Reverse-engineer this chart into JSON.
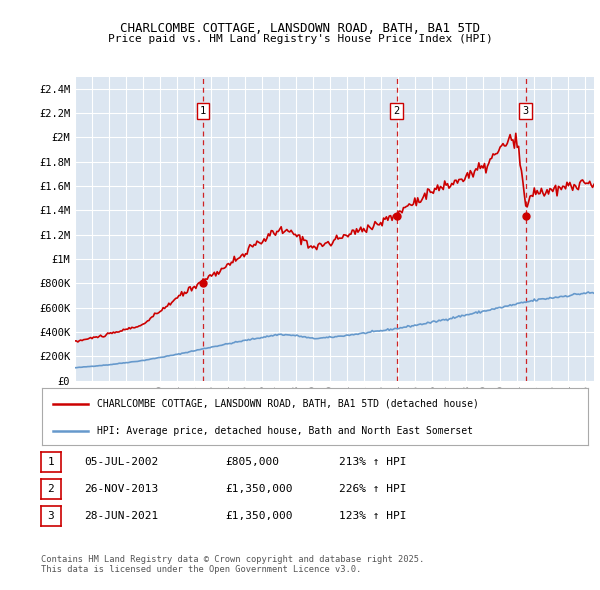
{
  "title": "CHARLCOMBE COTTAGE, LANSDOWN ROAD, BATH, BA1 5TD",
  "subtitle": "Price paid vs. HM Land Registry's House Price Index (HPI)",
  "plot_bg_color": "#dce6f1",
  "ylim": [
    0,
    2500000
  ],
  "yticks": [
    0,
    200000,
    400000,
    600000,
    800000,
    1000000,
    1200000,
    1400000,
    1600000,
    1800000,
    2000000,
    2200000,
    2400000
  ],
  "ytick_labels": [
    "£0",
    "£200K",
    "£400K",
    "£600K",
    "£800K",
    "£1M",
    "£1.2M",
    "£1.4M",
    "£1.6M",
    "£1.8M",
    "£2M",
    "£2.2M",
    "£2.4M"
  ],
  "xlim_start": 1995,
  "xlim_end": 2025.5,
  "sale_dates_decimal": [
    2002.508,
    2013.899,
    2021.486
  ],
  "sale_prices": [
    805000,
    1350000,
    1350000
  ],
  "sale_labels": [
    "1",
    "2",
    "3"
  ],
  "legend_line1": "CHARLCOMBE COTTAGE, LANSDOWN ROAD, BATH, BA1 5TD (detached house)",
  "legend_line2": "HPI: Average price, detached house, Bath and North East Somerset",
  "table_rows": [
    [
      "1",
      "05-JUL-2002",
      "£805,000",
      "213% ↑ HPI"
    ],
    [
      "2",
      "26-NOV-2013",
      "£1,350,000",
      "226% ↑ HPI"
    ],
    [
      "3",
      "28-JUN-2021",
      "£1,350,000",
      "123% ↑ HPI"
    ]
  ],
  "footer": "Contains HM Land Registry data © Crown copyright and database right 2025.\nThis data is licensed under the Open Government Licence v3.0.",
  "house_color": "#cc0000",
  "hpi_color": "#6699cc",
  "dashed_line_color": "#cc0000",
  "hpi_anchors_x": [
    1995,
    1997,
    1999,
    2001,
    2003,
    2005,
    2007,
    2008,
    2009,
    2010,
    2012,
    2014,
    2016,
    2018,
    2020,
    2022,
    2024,
    2025
  ],
  "hpi_anchors_y": [
    105000,
    130000,
    165000,
    215000,
    275000,
    330000,
    380000,
    370000,
    345000,
    355000,
    390000,
    430000,
    480000,
    540000,
    600000,
    660000,
    700000,
    720000
  ],
  "house_anchors_x": [
    1995,
    1997,
    1999,
    2001,
    2002.5,
    2004,
    2006,
    2007,
    2008,
    2009,
    2010,
    2011,
    2013,
    2013.9,
    2015,
    2016,
    2017,
    2018,
    2019,
    2020,
    2020.5,
    2021.0,
    2021.5,
    2022,
    2023,
    2024,
    2025
  ],
  "house_anchors_y": [
    320000,
    380000,
    460000,
    680000,
    820000,
    950000,
    1150000,
    1240000,
    1200000,
    1100000,
    1130000,
    1200000,
    1300000,
    1370000,
    1480000,
    1560000,
    1610000,
    1680000,
    1750000,
    1900000,
    1980000,
    1950000,
    1430000,
    1560000,
    1550000,
    1600000,
    1620000
  ]
}
